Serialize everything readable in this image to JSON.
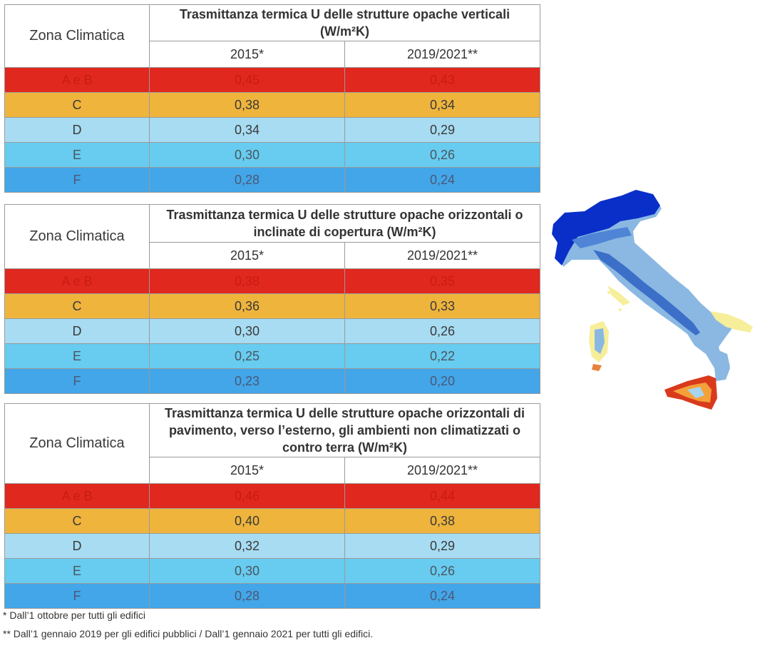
{
  "tables": [
    {
      "zone_header": "Zona Climatica",
      "title": "Trasmittanza termica U delle strutture opache verticali (W/m²K)",
      "year_a": "2015*",
      "year_b": "2019/2021**",
      "rows": [
        {
          "zone": "A e B",
          "v2015": "0,45",
          "v2019": "0,43"
        },
        {
          "zone": "C",
          "v2015": "0,38",
          "v2019": "0,34"
        },
        {
          "zone": "D",
          "v2015": "0,34",
          "v2019": "0,29"
        },
        {
          "zone": "E",
          "v2015": "0,30",
          "v2019": "0,26"
        },
        {
          "zone": "F",
          "v2015": "0,28",
          "v2019": "0,24"
        }
      ]
    },
    {
      "zone_header": "Zona Climatica",
      "title": "Trasmittanza termica U delle strutture opache orizzontali o inclinate di copertura (W/m²K)",
      "year_a": "2015*",
      "year_b": "2019/2021**",
      "rows": [
        {
          "zone": "A e B",
          "v2015": "0,38",
          "v2019": "0,35"
        },
        {
          "zone": "C",
          "v2015": "0,36",
          "v2019": "0,33"
        },
        {
          "zone": "D",
          "v2015": "0,30",
          "v2019": "0,26"
        },
        {
          "zone": "E",
          "v2015": "0,25",
          "v2019": "0,22"
        },
        {
          "zone": "F",
          "v2015": "0,23",
          "v2019": "0,20"
        }
      ]
    },
    {
      "zone_header": "Zona Climatica",
      "title": "Trasmittanza termica U delle strutture opache orizzontali di pavimento, verso l’esterno, gli ambienti non climatizzati o contro terra (W/m²K)",
      "year_a": "2015*",
      "year_b": "2019/2021**",
      "rows": [
        {
          "zone": "A e B",
          "v2015": "0,46",
          "v2019": "0,44"
        },
        {
          "zone": "C",
          "v2015": "0,40",
          "v2019": "0,38"
        },
        {
          "zone": "D",
          "v2015": "0,32",
          "v2019": "0,29"
        },
        {
          "zone": "E",
          "v2015": "0,30",
          "v2019": "0,26"
        },
        {
          "zone": "F",
          "v2015": "0,28",
          "v2019": "0,24"
        }
      ]
    }
  ],
  "notes": {
    "note1": "* Dall’1 ottobre per tutti gli edifici",
    "note2": "** Dall’1 gennaio 2019 per gli edifici pubblici / Dall’1 gennaio 2021 per tutti gli edifici."
  },
  "colors": {
    "zone_ab": "#e0281e",
    "zone_c": "#efb43c",
    "zone_d": "#a7dcf2",
    "zone_e": "#67ccef",
    "zone_f": "#43a6e8"
  },
  "map": {
    "icon": "italy-climate-zone-map"
  }
}
